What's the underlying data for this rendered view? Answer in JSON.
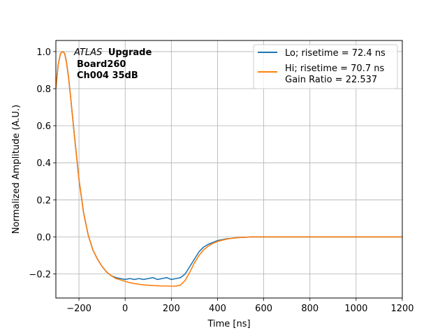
{
  "chart_data": {
    "type": "line",
    "xlabel": "Time [ns]",
    "ylabel": "Normalized Amplitude (A.U.)",
    "xlim": [
      -300,
      1200
    ],
    "ylim": [
      -0.33,
      1.06
    ],
    "grid": true,
    "legend_placement": "top-right",
    "x_ticks": [
      -200,
      0,
      200,
      400,
      600,
      800,
      1000,
      1200
    ],
    "x_tick_labels": [
      "−200",
      "0",
      "200",
      "400",
      "600",
      "800",
      "1000",
      "1200"
    ],
    "y_ticks": [
      -0.2,
      0.0,
      0.2,
      0.4,
      0.6,
      0.8,
      1.0
    ],
    "y_tick_labels": [
      "−0.2",
      "0.0",
      "0.2",
      "0.4",
      "0.6",
      "0.8",
      "1.0"
    ],
    "annotation": {
      "line1_italic": "ATLAS",
      "line1_bold": "Upgrade",
      "line2": "Board260",
      "line3": "Ch004 35dB"
    },
    "series": [
      {
        "name": "Lo; risetime = 72.4 ns",
        "color": "#1f77b4",
        "x": [
          -300,
          -290,
          -280,
          -270,
          -262,
          -255,
          -245,
          -235,
          -220,
          -200,
          -180,
          -160,
          -140,
          -120,
          -100,
          -80,
          -60,
          -40,
          -20,
          0,
          20,
          40,
          60,
          80,
          100,
          120,
          140,
          160,
          180,
          200,
          220,
          240,
          260,
          280,
          300,
          320,
          340,
          360,
          380,
          400,
          420,
          440,
          460,
          480,
          500,
          550,
          600,
          650,
          700,
          800,
          900,
          1000,
          1100,
          1200
        ],
        "y": [
          0.8,
          0.93,
          0.99,
          1.0,
          0.99,
          0.95,
          0.86,
          0.74,
          0.55,
          0.31,
          0.13,
          0.01,
          -0.07,
          -0.12,
          -0.16,
          -0.19,
          -0.21,
          -0.22,
          -0.225,
          -0.23,
          -0.225,
          -0.23,
          -0.225,
          -0.23,
          -0.225,
          -0.22,
          -0.23,
          -0.225,
          -0.22,
          -0.23,
          -0.225,
          -0.22,
          -0.2,
          -0.16,
          -0.12,
          -0.08,
          -0.055,
          -0.04,
          -0.03,
          -0.02,
          -0.015,
          -0.01,
          -0.008,
          -0.005,
          -0.003,
          0.0,
          0.0,
          0.0,
          0.0,
          0.0,
          0.0,
          0.0,
          0.0,
          0.0
        ]
      },
      {
        "name": "Hi; risetime = 70.7 ns\n Gain Ratio = 22.537",
        "color": "#ff7f0e",
        "x": [
          -300,
          -290,
          -280,
          -270,
          -262,
          -255,
          -245,
          -235,
          -220,
          -200,
          -180,
          -160,
          -140,
          -120,
          -100,
          -80,
          -60,
          -40,
          -20,
          0,
          20,
          40,
          60,
          80,
          100,
          120,
          140,
          160,
          180,
          200,
          220,
          240,
          260,
          280,
          300,
          320,
          340,
          360,
          380,
          400,
          420,
          440,
          460,
          480,
          500,
          550,
          600,
          650,
          700,
          800,
          900,
          1000,
          1100,
          1200
        ],
        "y": [
          0.8,
          0.93,
          0.99,
          1.0,
          0.99,
          0.95,
          0.86,
          0.74,
          0.55,
          0.31,
          0.13,
          0.01,
          -0.07,
          -0.12,
          -0.16,
          -0.19,
          -0.21,
          -0.225,
          -0.232,
          -0.24,
          -0.247,
          -0.252,
          -0.256,
          -0.259,
          -0.261,
          -0.263,
          -0.264,
          -0.265,
          -0.265,
          -0.266,
          -0.266,
          -0.26,
          -0.235,
          -0.19,
          -0.14,
          -0.1,
          -0.07,
          -0.05,
          -0.035,
          -0.025,
          -0.018,
          -0.012,
          -0.008,
          -0.005,
          -0.003,
          0.0,
          0.0,
          0.0,
          0.0,
          0.0,
          0.0,
          0.0,
          0.0,
          0.0
        ]
      }
    ]
  }
}
